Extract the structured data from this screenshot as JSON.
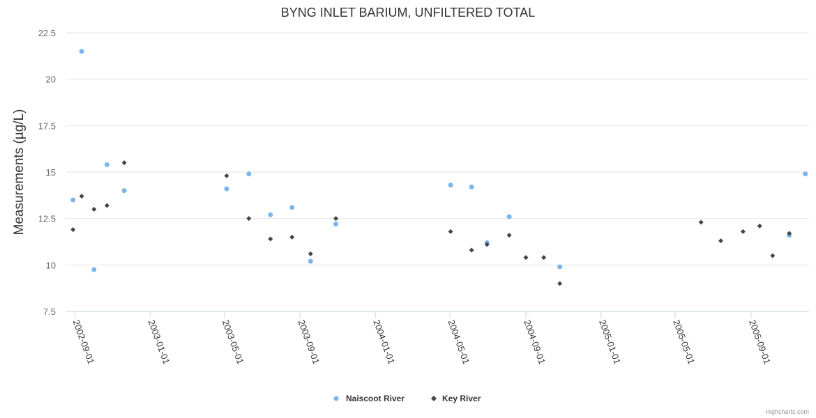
{
  "chart_data": {
    "type": "scatter",
    "title": "BYNG INLET BARIUM, UNFILTERED TOTAL",
    "xlabel": "",
    "ylabel": "Measurements (µg/L)",
    "ylim": [
      7.5,
      22.5
    ],
    "xlim": [
      "2002-08-18",
      "2005-12-04"
    ],
    "y_ticks": [
      "7.5",
      "10",
      "12.5",
      "15",
      "17.5",
      "20",
      "22.5"
    ],
    "x_ticks": [
      "2002-09-01",
      "2003-01-01",
      "2003-05-01",
      "2003-09-01",
      "2004-01-01",
      "2004-05-01",
      "2004-09-01",
      "2005-01-01",
      "2005-05-01",
      "2005-09-01"
    ],
    "grid": true,
    "legend_position": "bottom-center",
    "series": [
      {
        "name": "Naiscoot River",
        "color": "#7cb5ec",
        "marker": "circle",
        "points": [
          [
            "2002-08-29",
            13.5
          ],
          [
            "2002-09-12",
            21.5
          ],
          [
            "2002-10-02",
            9.75
          ],
          [
            "2002-10-23",
            15.4
          ],
          [
            "2002-11-20",
            14.0
          ],
          [
            "2003-05-05",
            14.1
          ],
          [
            "2003-06-10",
            14.9
          ],
          [
            "2003-07-15",
            12.7
          ],
          [
            "2003-08-19",
            13.1
          ],
          [
            "2003-09-18",
            10.2
          ],
          [
            "2003-10-29",
            12.2
          ],
          [
            "2004-05-02",
            14.3
          ],
          [
            "2004-06-05",
            14.2
          ],
          [
            "2004-06-30",
            11.2
          ],
          [
            "2004-08-05",
            12.6
          ],
          [
            "2004-10-26",
            9.9
          ],
          [
            "2005-11-02",
            11.6
          ],
          [
            "2005-11-28",
            14.9
          ]
        ]
      },
      {
        "name": "Key River",
        "color": "#434348",
        "marker": "diamond",
        "points": [
          [
            "2002-08-29",
            11.9
          ],
          [
            "2002-09-12",
            13.7
          ],
          [
            "2002-10-02",
            13.0
          ],
          [
            "2002-10-23",
            13.2
          ],
          [
            "2002-11-20",
            15.5
          ],
          [
            "2003-05-05",
            14.8
          ],
          [
            "2003-06-10",
            12.5
          ],
          [
            "2003-07-15",
            11.4
          ],
          [
            "2003-08-19",
            11.5
          ],
          [
            "2003-09-18",
            10.6
          ],
          [
            "2003-10-29",
            12.5
          ],
          [
            "2004-05-02",
            11.8
          ],
          [
            "2004-06-05",
            10.8
          ],
          [
            "2004-06-30",
            11.1
          ],
          [
            "2004-08-05",
            11.6
          ],
          [
            "2004-09-01",
            10.4
          ],
          [
            "2004-09-30",
            10.4
          ],
          [
            "2004-10-26",
            9.0
          ],
          [
            "2005-06-12",
            12.3
          ],
          [
            "2005-07-14",
            11.3
          ],
          [
            "2005-08-19",
            11.8
          ],
          [
            "2005-09-15",
            12.1
          ],
          [
            "2005-10-06",
            10.5
          ],
          [
            "2005-11-02",
            11.7
          ]
        ]
      }
    ]
  },
  "credits": "Highcharts.com"
}
